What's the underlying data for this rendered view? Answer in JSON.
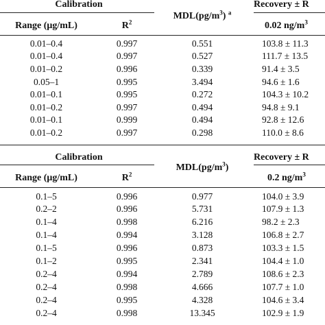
{
  "table1": {
    "header": {
      "calibration": "Calibration",
      "mdl": "MDL(pg/m",
      "mdl_sup": "3",
      "mdl_close": ")",
      "mdl_note": "a",
      "recovery": "Recovery ± R",
      "range": "Range (μg/mL)",
      "r2": "R",
      "r2_sup": "2",
      "spike": "0.02 ng/m",
      "spike_sup": "3"
    },
    "rows": [
      {
        "range": "0.01–0.4",
        "r2": "0.997",
        "mdl": "0.551",
        "recovery": "103.8 ± 11.3"
      },
      {
        "range": "0.01–0.4",
        "r2": "0.997",
        "mdl": "0.527",
        "recovery": "111.7 ± 13.5"
      },
      {
        "range": "0.01–0.2",
        "r2": "0.996",
        "mdl": "0.339",
        "recovery": "91.4 ± 3.5"
      },
      {
        "range": "0.05–1",
        "r2": "0.995",
        "mdl": "3.494",
        "recovery": "94.6 ± 1.6"
      },
      {
        "range": "0.01–0.1",
        "r2": "0.995",
        "mdl": "0.272",
        "recovery": "104.3 ± 10.2"
      },
      {
        "range": "0.01–0.2",
        "r2": "0.997",
        "mdl": "0.494",
        "recovery": "94.8 ± 9.1"
      },
      {
        "range": "0.01–0.1",
        "r2": "0.999",
        "mdl": "0.494",
        "recovery": "92.8 ± 12.6"
      },
      {
        "range": "0.01–0.2",
        "r2": "0.997",
        "mdl": "0.298",
        "recovery": "110.0 ± 8.6"
      }
    ]
  },
  "table2": {
    "header": {
      "calibration": "Calibration",
      "mdl": "MDL(pg/m",
      "mdl_sup": "3",
      "mdl_close": ")",
      "recovery": "Recovery ± R",
      "range": "Range (μg/mL)",
      "r2": "R",
      "r2_sup": "2",
      "spike": "0.2 ng/m",
      "spike_sup": "3"
    },
    "rows": [
      {
        "range": "0.1–5",
        "r2": "0.996",
        "mdl": "0.977",
        "recovery": "104.0 ± 3.9"
      },
      {
        "range": "0.2–2",
        "r2": "0.996",
        "mdl": "5.731",
        "recovery": "107.9 ± 1.3"
      },
      {
        "range": "0.1–4",
        "r2": "0.998",
        "mdl": "6.216",
        "recovery": "98.2 ± 2.3"
      },
      {
        "range": "0.1–4",
        "r2": "0.994",
        "mdl": "3.128",
        "recovery": "106.8 ± 2.7"
      },
      {
        "range": "0.1–5",
        "r2": "0.996",
        "mdl": "0.873",
        "recovery": "103.3 ± 1.5"
      },
      {
        "range": "0.1–2",
        "r2": "0.995",
        "mdl": "2.341",
        "recovery": "104.4 ± 1.0"
      },
      {
        "range": "0.2–4",
        "r2": "0.994",
        "mdl": "2.789",
        "recovery": "108.6 ± 2.3"
      },
      {
        "range": "0.2–4",
        "r2": "0.998",
        "mdl": "4.666",
        "recovery": "107.7 ± 1.0"
      },
      {
        "range": "0.2–4",
        "r2": "0.995",
        "mdl": "4.328",
        "recovery": "104.6 ± 3.4"
      },
      {
        "range": "0.2–4",
        "r2": "0.998",
        "mdl": "13.345",
        "recovery": "102.9 ± 1.9"
      }
    ]
  }
}
